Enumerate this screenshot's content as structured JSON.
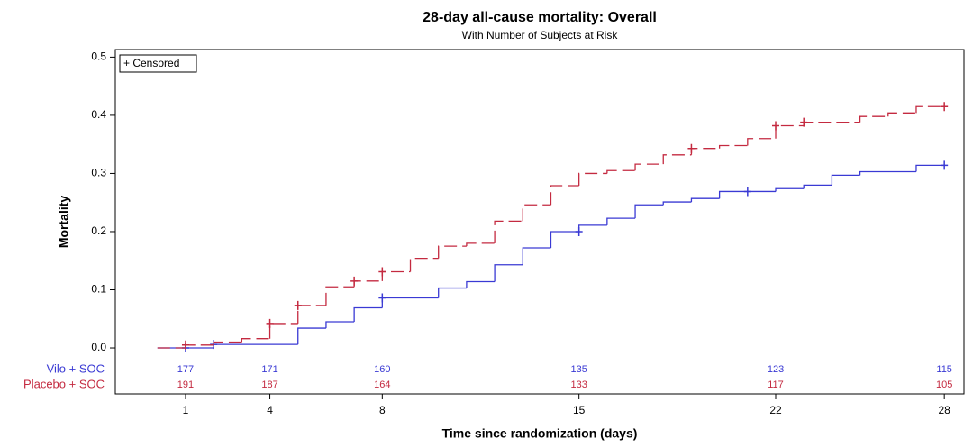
{
  "chart_data": {
    "type": "step",
    "title": "28-day all-cause mortality: Overall",
    "subtitle": "With Number of Subjects at Risk",
    "x_label": "Time since randomization (days)",
    "y_label": "Mortality",
    "censored_legend": "+ Censored",
    "xlim": [
      -1.5,
      28.7
    ],
    "ylim": [
      -0.079,
      0.513
    ],
    "xticks": [
      1,
      4,
      8,
      15,
      22,
      28
    ],
    "yticks": [
      {
        "value": 0,
        "label": "0.0"
      },
      0.1,
      0.2,
      0.3,
      0.4,
      0.5
    ],
    "series": [
      {
        "name": "Vilo + SOC",
        "color": "#3a3ad4",
        "dash": false,
        "x": [
          0,
          2,
          5,
          6,
          7,
          8,
          10,
          11,
          12,
          13,
          14,
          15,
          16,
          17,
          18,
          19,
          20,
          22,
          23,
          24,
          25,
          27,
          28
        ],
        "values": [
          0,
          0.006,
          0.034,
          0.045,
          0.069,
          0.086,
          0.103,
          0.114,
          0.143,
          0.172,
          0.2,
          0.211,
          0.223,
          0.246,
          0.251,
          0.257,
          0.269,
          0.274,
          0.28,
          0.297,
          0.303,
          0.314,
          0.314
        ],
        "censored_x": [
          1,
          2,
          8,
          15,
          21,
          28
        ],
        "censored_values": [
          0,
          0.006,
          0.086,
          0.2,
          0.269,
          0.314
        ],
        "at_risk": [
          177,
          171,
          160,
          135,
          123,
          115
        ]
      },
      {
        "name": "Placebo + SOC",
        "color": "#c42a40",
        "dash": true,
        "x": [
          0,
          1,
          2,
          3,
          4,
          5,
          6,
          7,
          8,
          9,
          10,
          11,
          12,
          13,
          14,
          15,
          16,
          17,
          18,
          19,
          20,
          21,
          22,
          23,
          25,
          26,
          27,
          28
        ],
        "values": [
          0,
          0.005,
          0.01,
          0.016,
          0.042,
          0.073,
          0.105,
          0.115,
          0.131,
          0.154,
          0.175,
          0.18,
          0.218,
          0.246,
          0.279,
          0.3,
          0.305,
          0.316,
          0.332,
          0.343,
          0.348,
          0.36,
          0.382,
          0.388,
          0.398,
          0.404,
          0.415,
          0.415
        ],
        "censored_x": [
          1,
          4,
          5,
          7,
          8,
          19,
          22,
          23,
          28
        ],
        "censored_values": [
          0.005,
          0.042,
          0.073,
          0.115,
          0.131,
          0.343,
          0.382,
          0.388,
          0.415
        ],
        "at_risk": [
          191,
          187,
          164,
          133,
          117,
          105
        ]
      }
    ]
  }
}
